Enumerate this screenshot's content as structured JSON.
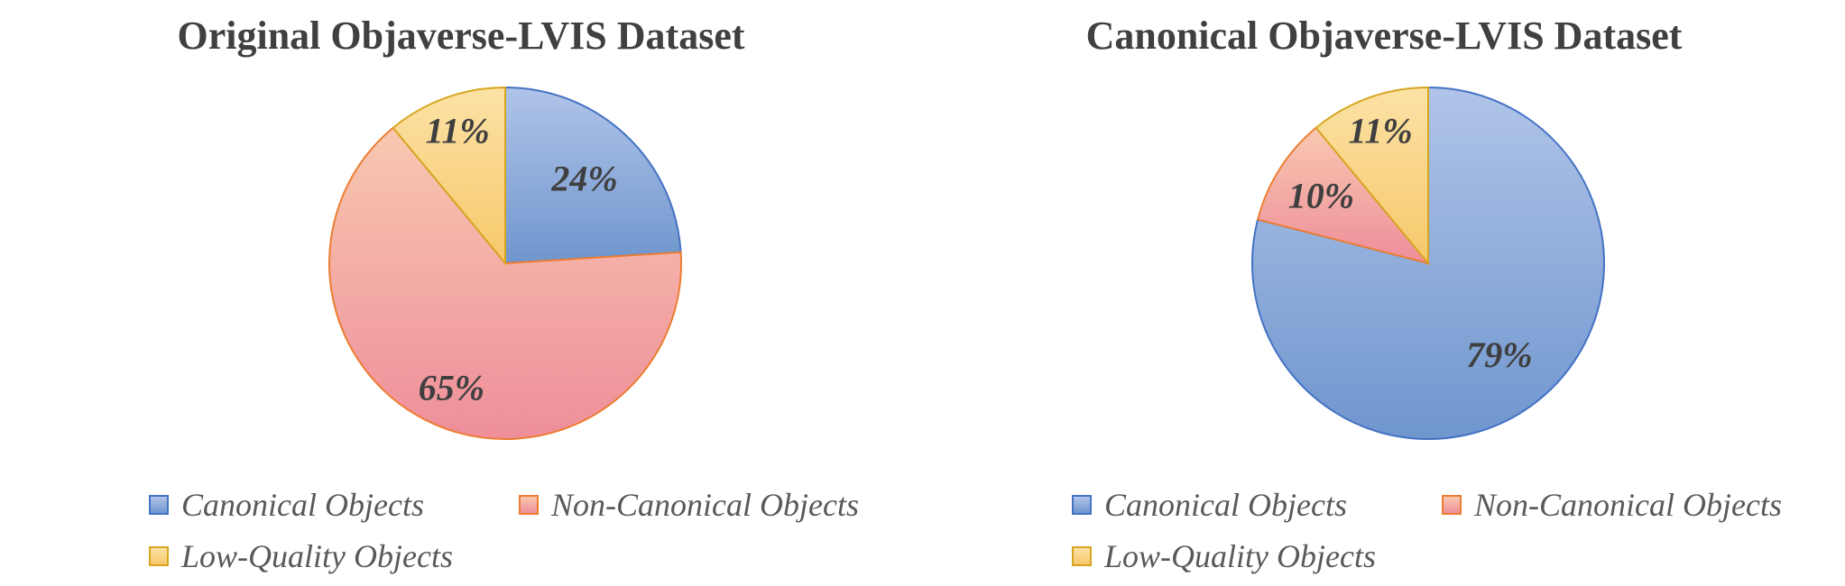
{
  "chart_data": [
    {
      "type": "pie",
      "title": "Original Objaverse-LVIS Dataset",
      "labels": [
        "Canonical Objects",
        "Non-Canonical Objects",
        "Low-Quality Objects"
      ],
      "values": [
        24,
        65,
        11
      ],
      "value_labels": [
        "24%",
        "65%",
        "11%"
      ],
      "colors": [
        "#6f96ce",
        "#ee8e9a",
        "#f6c86a"
      ],
      "legend_position": "bottom"
    },
    {
      "type": "pie",
      "title": "Canonical Objaverse-LVIS Dataset",
      "labels": [
        "Canonical Objects",
        "Non-Canonical Objects",
        "Low-Quality Objects"
      ],
      "values": [
        79,
        10,
        11
      ],
      "value_labels": [
        "79%",
        "10%",
        "11%"
      ],
      "colors": [
        "#6f96ce",
        "#ee8e9a",
        "#f6c86a"
      ],
      "legend_position": "bottom"
    }
  ]
}
